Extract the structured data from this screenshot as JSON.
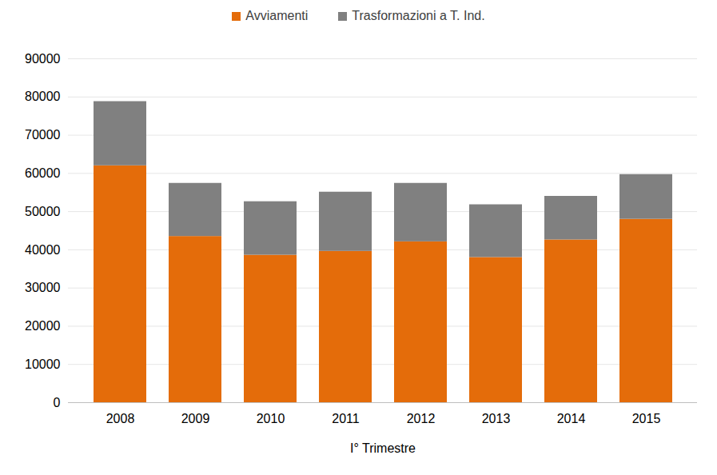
{
  "chart_data": {
    "type": "bar",
    "stacked": true,
    "legend": "top",
    "grid": true,
    "xlabel": "I° Trimestre",
    "categories": [
      "2008",
      "2009",
      "2010",
      "2011",
      "2012",
      "2013",
      "2014",
      "2015"
    ],
    "series": [
      {
        "name": "Avviamenti",
        "color": "#e46c0a",
        "values": [
          62000,
          43500,
          38600,
          39600,
          42100,
          38000,
          42600,
          48000
        ]
      },
      {
        "name": "Trasformazioni a T. Ind.",
        "color": "#808080",
        "values": [
          16800,
          13900,
          14000,
          15500,
          15300,
          13800,
          11400,
          11700
        ]
      }
    ],
    "ylim": [
      0,
      90000
    ],
    "yticks": [
      0,
      10000,
      20000,
      30000,
      40000,
      50000,
      60000,
      70000,
      80000,
      90000
    ]
  }
}
